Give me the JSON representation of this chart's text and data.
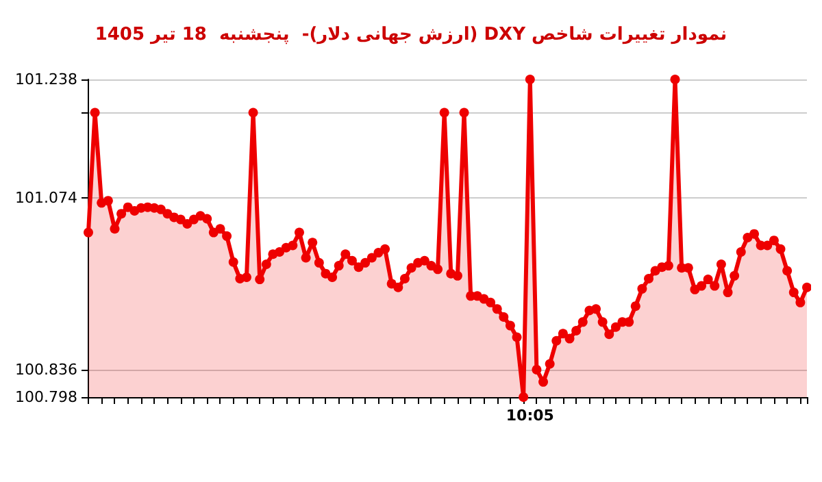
{
  "chart_data": {
    "type": "area",
    "title": "نمودار تغییرات شاخص DXY (ارزش جهانی دلار)-  پنجشنبه  18 تیر 1405",
    "categories": [
      null,
      null,
      null,
      null,
      null,
      null,
      null,
      null,
      null,
      null,
      null,
      null,
      null,
      null,
      null,
      null,
      null,
      null,
      null,
      null,
      null,
      null,
      null,
      null,
      null,
      null,
      null,
      null,
      null,
      null,
      null,
      null,
      null,
      null,
      null,
      null,
      null,
      null,
      null,
      null,
      null,
      null,
      null,
      null,
      null,
      null,
      null,
      null,
      null,
      null,
      null,
      null,
      null,
      null,
      null,
      null,
      null,
      null,
      null,
      null,
      null,
      null,
      null,
      null,
      null,
      null,
      null,
      "10:05",
      null,
      null,
      null,
      null,
      null,
      null,
      null,
      null,
      null,
      null,
      null,
      null,
      null,
      null,
      null,
      null,
      null,
      null,
      null,
      null,
      null,
      null,
      null,
      null,
      null,
      null,
      null,
      null,
      null,
      null,
      null,
      null,
      null,
      null,
      null,
      null,
      null,
      null,
      null,
      null,
      null,
      null
    ],
    "series": [
      {
        "color": "#ee0000",
        "values": [
          101.026,
          101.192,
          101.067,
          101.07,
          101.031,
          101.052,
          101.061,
          101.056,
          101.06,
          101.061,
          101.06,
          101.058,
          101.052,
          101.047,
          101.044,
          101.038,
          101.044,
          101.049,
          101.045,
          101.026,
          101.031,
          101.021,
          100.985,
          100.962,
          100.964,
          101.192,
          100.961,
          100.982,
          100.996,
          100.999,
          101.005,
          101.008,
          101.026,
          100.991,
          101.012,
          100.984,
          100.969,
          100.964,
          100.98,
          100.996,
          100.987,
          100.978,
          100.984,
          100.991,
          100.998,
          101.003,
          100.955,
          100.95,
          100.962,
          100.977,
          100.984,
          100.987,
          100.98,
          100.975,
          101.192,
          100.969,
          100.966,
          101.192,
          100.938,
          100.938,
          100.934,
          100.929,
          100.92,
          100.909,
          100.897,
          100.881,
          100.798,
          101.238,
          100.836,
          100.819,
          100.844,
          100.876,
          100.886,
          100.879,
          100.89,
          100.902,
          100.918,
          100.92,
          100.902,
          100.885,
          100.895,
          100.902,
          100.902,
          100.924,
          100.948,
          100.962,
          100.973,
          100.978,
          100.98,
          101.238,
          100.977,
          100.977,
          100.947,
          100.952,
          100.961,
          100.952,
          100.982,
          100.943,
          100.966,
          100.999,
          101.019,
          101.024,
          101.008,
          101.008,
          101.015,
          101.003,
          100.973,
          100.943,
          100.929,
          100.95
        ]
      }
    ],
    "ylim": [
      100.798,
      101.238
    ],
    "yticks": [
      100.798,
      100.836,
      101.074,
      {
        "value": 101.192,
        "label": null
      },
      101.238
    ],
    "grid": "y",
    "marker": "circle",
    "line_style": "solid"
  }
}
